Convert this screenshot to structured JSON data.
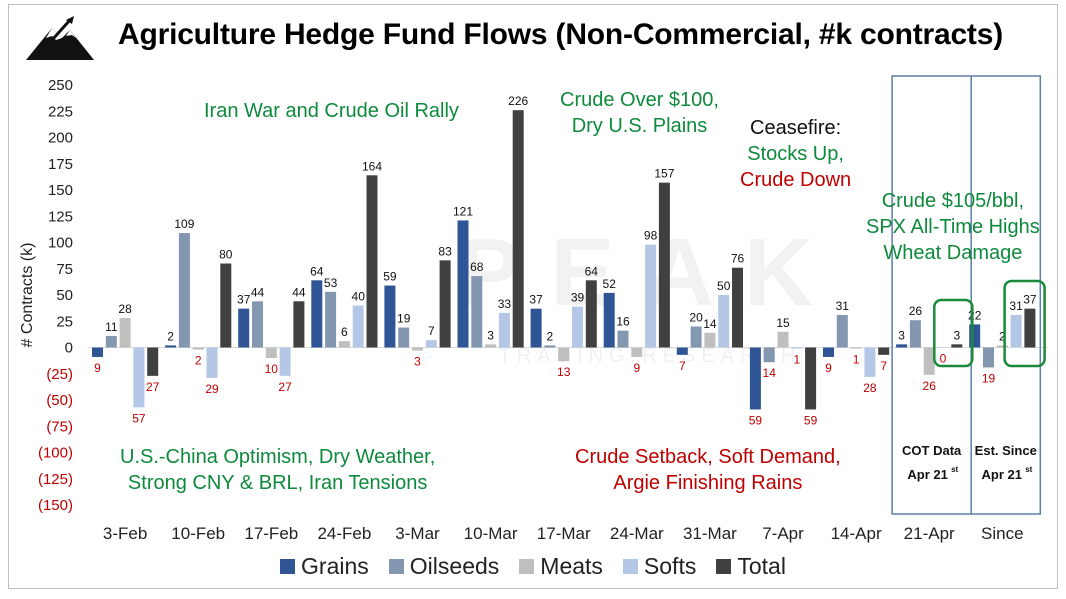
{
  "title": "Agriculture Hedge Fund Flows (Non-Commercial, #k contracts)",
  "logo": {
    "icon": "mountain-peak-logo",
    "watermark": "PEAK TRADING RESEARCH"
  },
  "colors": {
    "Grains": "#2f5597",
    "Oilseeds": "#8497b0",
    "Meats": "#bfbfbf",
    "Softs": "#b4c7e7",
    "Total": "#404040",
    "green_text": "#0e8a3c",
    "red_text": "#c00000",
    "highlight_box": "#1a8a3a",
    "panel_border": "#5b7fa6"
  },
  "annotations": [
    {
      "lines": [
        {
          "text": "Iran War and Crude Oil Rally",
          "color": "green"
        }
      ]
    },
    {
      "lines": [
        {
          "text": "Crude Over $100,",
          "color": "green"
        },
        {
          "text": "Dry U.S. Plains",
          "color": "green"
        }
      ]
    },
    {
      "lines": [
        {
          "text": "Ceasefire:",
          "color": "black"
        },
        {
          "text": "Stocks Up,",
          "color": "green"
        },
        {
          "text": "Crude Down",
          "color": "red"
        }
      ]
    },
    {
      "lines": [
        {
          "text": "Crude $105/bbl,",
          "color": "green"
        },
        {
          "text": "SPX All-Time Highs",
          "color": "green"
        },
        {
          "text": "Wheat Damage",
          "color": "green"
        }
      ]
    },
    {
      "lines": [
        {
          "text": "U.S.-China Optimism, Dry Weather,",
          "color": "green"
        },
        {
          "text": "Strong CNY & BRL, Iran Tensions",
          "color": "green"
        }
      ]
    },
    {
      "lines": [
        {
          "text": "Crude Setback, Soft Demand,",
          "color": "red"
        },
        {
          "text": "Argie Finishing Rains",
          "color": "red"
        }
      ]
    }
  ],
  "panels": [
    {
      "line1": "COT Data",
      "line2": "Apr 21",
      "sup": "st"
    },
    {
      "line1": "Est. Since",
      "line2": "Apr 21",
      "sup": "st"
    }
  ],
  "chart_data": {
    "type": "bar",
    "ylabel": "# Contracts (k)",
    "ylim": [
      -150,
      250
    ],
    "yticks": [
      250,
      225,
      200,
      175,
      150,
      125,
      100,
      75,
      50,
      25,
      0,
      -25,
      -50,
      -75,
      -100,
      -125,
      -150
    ],
    "ytick_labels": [
      "250",
      "225",
      "200",
      "175",
      "150",
      "125",
      "100",
      "75",
      "50",
      "25",
      "0",
      "(25)",
      "(50)",
      "(75)",
      "(100)",
      "(125)",
      "(150)"
    ],
    "categories": [
      "3-Feb",
      "10-Feb",
      "17-Feb",
      "24-Feb",
      "3-Mar",
      "10-Mar",
      "17-Mar",
      "24-Mar",
      "31-Mar",
      "7-Apr",
      "14-Apr",
      "21-Apr",
      "Since"
    ],
    "series": [
      {
        "name": "Grains",
        "values": [
          -9,
          2,
          37,
          64,
          59,
          121,
          37,
          52,
          -7,
          -59,
          -9,
          3,
          22
        ]
      },
      {
        "name": "Oilseeds",
        "values": [
          11,
          109,
          44,
          53,
          19,
          68,
          2,
          16,
          20,
          -14,
          31,
          26,
          -19
        ]
      },
      {
        "name": "Meats",
        "values": [
          28,
          -2,
          -10,
          6,
          -3,
          3,
          -13,
          -9,
          14,
          15,
          -1,
          -26,
          2
        ]
      },
      {
        "name": "Softs",
        "values": [
          -57,
          -29,
          -27,
          40,
          7,
          33,
          39,
          98,
          50,
          -1,
          -28,
          0,
          31
        ]
      },
      {
        "name": "Total",
        "values": [
          -27,
          80,
          44,
          164,
          83,
          226,
          64,
          157,
          76,
          -59,
          -7,
          3,
          37
        ]
      }
    ],
    "data_labels": [
      [
        "9",
        "11",
        "28",
        "57",
        "27"
      ],
      [
        "2",
        "109",
        "2",
        "29",
        "80"
      ],
      [
        "37",
        "44",
        "10",
        "27",
        "44"
      ],
      [
        "64",
        "53",
        "6",
        "40",
        "164"
      ],
      [
        "59",
        "19",
        "3",
        "7",
        "83"
      ],
      [
        "121",
        "68",
        "3",
        "33",
        "226"
      ],
      [
        "37",
        "2",
        "13",
        "39",
        "64"
      ],
      [
        "52",
        "16",
        "9",
        "98",
        "157"
      ],
      [
        "7",
        "20",
        "14",
        "50",
        "76"
      ],
      [
        "59",
        "14",
        "15",
        "1",
        "59"
      ],
      [
        "9",
        "31",
        "1",
        "28",
        "7"
      ],
      [
        "3",
        "26",
        "26",
        "0",
        "3"
      ],
      [
        "22",
        "19",
        "2",
        "31",
        "37"
      ]
    ],
    "legend": [
      "Grains",
      "Oilseeds",
      "Meats",
      "Softs",
      "Total"
    ],
    "legend_position": "bottom",
    "grid": false
  }
}
